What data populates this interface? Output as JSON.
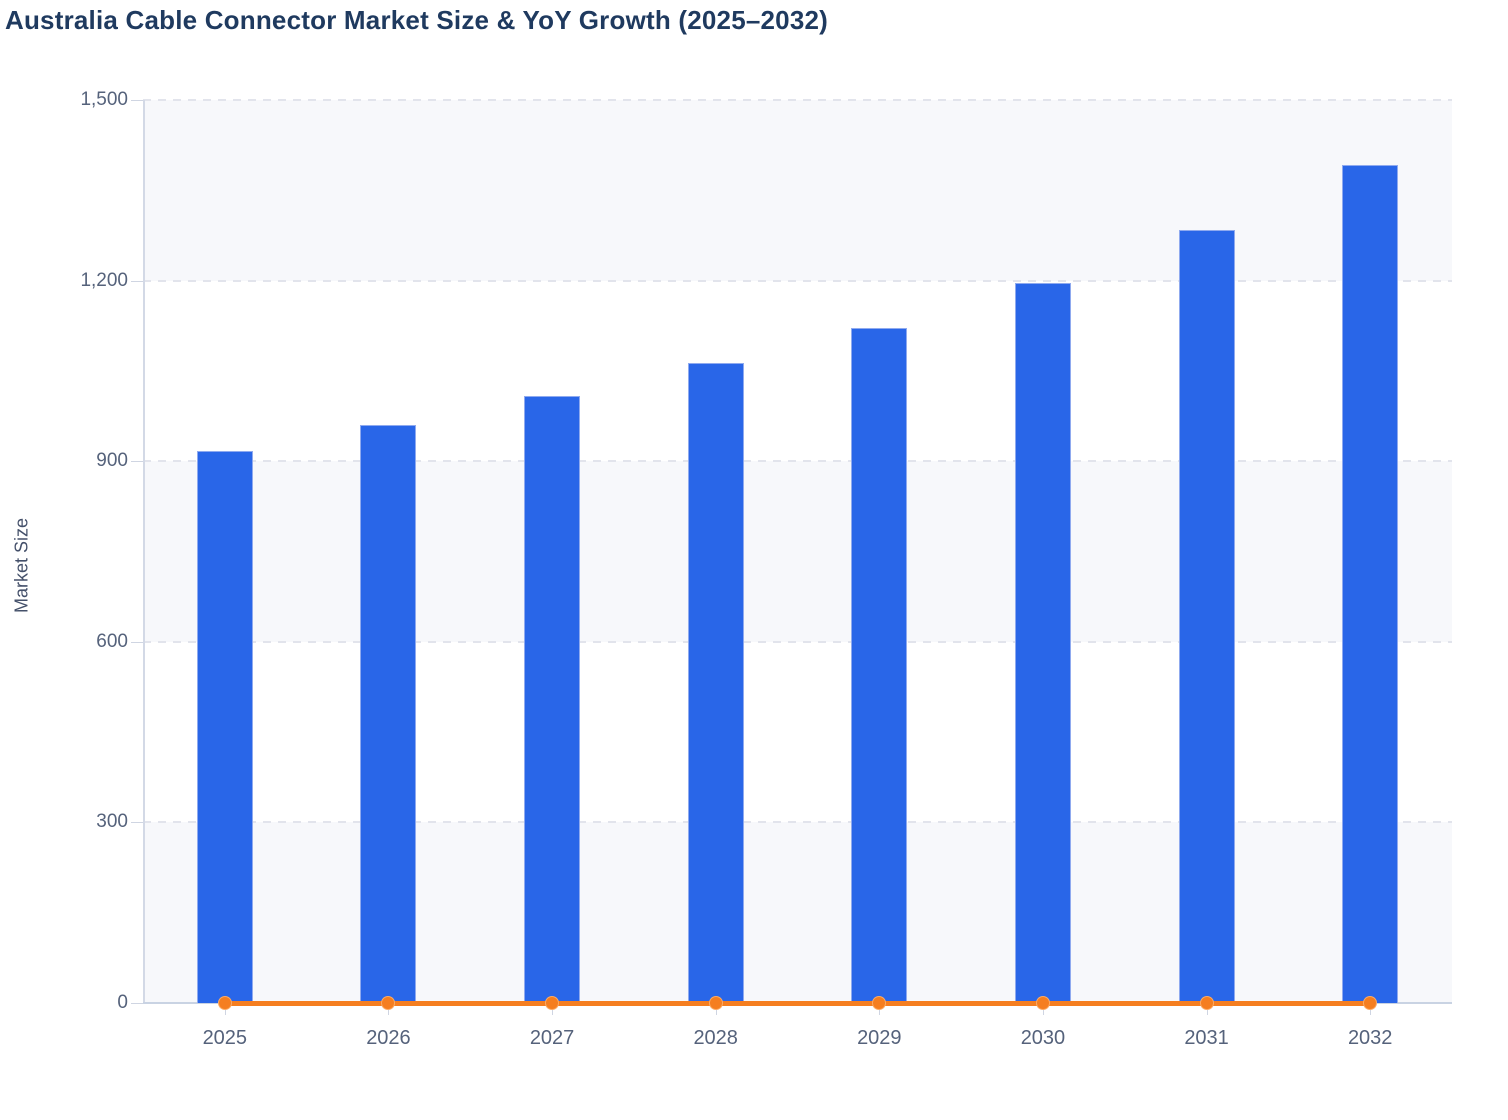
{
  "page": {
    "title": "Australia Cable Connector Market Size & YoY Growth (2025–2032)"
  },
  "colors": {
    "title_text": "#1f3a5f",
    "axis_text": "#55627b",
    "bar_fill": "#2966e8",
    "bar_stroke": "#9ab1f0",
    "line_color": "#f57e20",
    "gridline": "#e2e4ec",
    "band_shade": "#f7f8fb",
    "band_plain": "#ffffff",
    "axis_line": "#c9d3e3"
  },
  "chart_data": {
    "type": "bar",
    "title": "Australia Cable Connector Market Size & YoY Growth (2025–2032)",
    "categories": [
      "2025",
      "2026",
      "2027",
      "2028",
      "2029",
      "2030",
      "2031",
      "2032"
    ],
    "series": [
      {
        "name": "Market Size",
        "type": "bar",
        "color": "#2966e8",
        "values": [
          917,
          960,
          1008,
          1063,
          1122,
          1196,
          1284,
          1392
        ]
      },
      {
        "name": "YoY Growth",
        "type": "line",
        "color": "#f57e20",
        "values": [
          0,
          0,
          0,
          0,
          0,
          0,
          0,
          0
        ],
        "note": "line with circular markers renders flat at y≈0 against the left Market Size axis"
      }
    ],
    "xlabel": "",
    "ylabel": "Market Size",
    "ylim": [
      0,
      1500
    ],
    "ytick_values": [
      0,
      300,
      600,
      900,
      1200,
      1500
    ],
    "ytick_labels": [
      "0",
      "300",
      "600",
      "900",
      "1,200",
      "1,500"
    ],
    "grid": "horizontal dashed gridlines",
    "background_bands": "alternating shaded/plain horizontal bands every 300 units, shaded starting from top band (1500-1200)",
    "legend": "none"
  }
}
